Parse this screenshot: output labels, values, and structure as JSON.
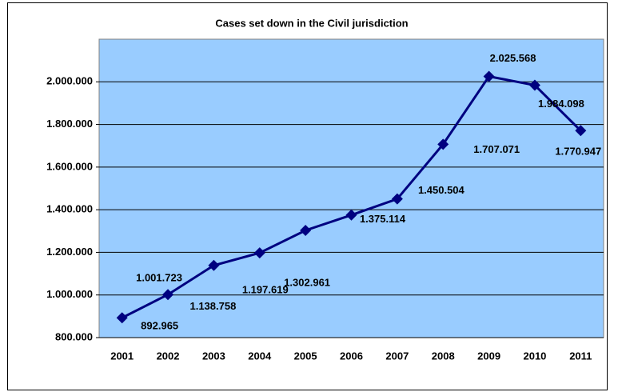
{
  "chart_data": {
    "type": "line",
    "title": "Cases set down in the Civil jurisdiction",
    "categories": [
      "2001",
      "2002",
      "2003",
      "2004",
      "2005",
      "2006",
      "2007",
      "2008",
      "2009",
      "2010",
      "2011"
    ],
    "series": [
      {
        "name": "Cases set down",
        "color": "#000080",
        "values": [
          892965,
          1001723,
          1138758,
          1197619,
          1302961,
          1375114,
          1450504,
          1707071,
          2025568,
          1984098,
          1770947
        ],
        "value_labels": [
          "892.965",
          "1.001.723",
          "1.138.758",
          "1.197.619",
          "1.302.961",
          "1.375.114",
          "1.450.504",
          "1.707.071",
          "2.025.568",
          "1.984.098",
          "1.770.947"
        ]
      }
    ],
    "ylim": [
      800000,
      2200000
    ],
    "yticks": [
      {
        "value": 800000,
        "label": "800.000"
      },
      {
        "value": 1000000,
        "label": "1.000.000"
      },
      {
        "value": 1200000,
        "label": "1.200.000"
      },
      {
        "value": 1400000,
        "label": "1.400.000"
      },
      {
        "value": 1600000,
        "label": "1.600.000"
      },
      {
        "value": 1800000,
        "label": "1.800.000"
      },
      {
        "value": 2000000,
        "label": "2.000.000"
      }
    ],
    "grid": true,
    "plot_background": "#99ccff"
  }
}
